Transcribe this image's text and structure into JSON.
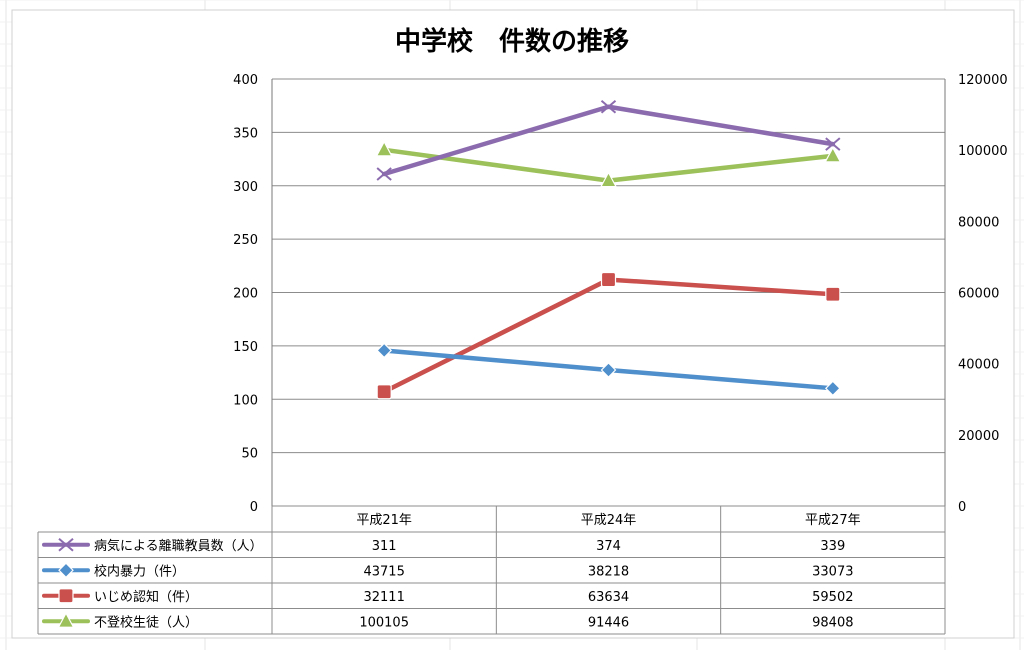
{
  "chart_data": {
    "type": "line",
    "title": "中学校　件数の推移",
    "categories": [
      "平成21年",
      "平成24年",
      "平成27年"
    ],
    "y_left": {
      "min": 0,
      "max": 400,
      "ticks": [
        "0",
        "50",
        "100",
        "150",
        "200",
        "250",
        "300",
        "350",
        "400"
      ]
    },
    "y_right": {
      "min": 0,
      "max": 120000,
      "ticks": [
        "0",
        "20000",
        "40000",
        "60000",
        "80000",
        "100000",
        "120000"
      ]
    },
    "grid": true,
    "legend_placement": "data-table-left",
    "series": [
      {
        "name": "病気による離職教員数（人）",
        "axis": "left",
        "color": "#8B6BAE",
        "marker": "x",
        "values": [
          311,
          374,
          339
        ],
        "labels": [
          "311",
          "374",
          "339"
        ]
      },
      {
        "name": "校内暴力（件）",
        "axis": "right",
        "color": "#4F8FCB",
        "marker": "diamond",
        "values": [
          43715,
          38218,
          33073
        ],
        "labels": [
          "43715",
          "38218",
          "33073"
        ]
      },
      {
        "name": "いじめ認知（件）",
        "axis": "right",
        "color": "#C9504D",
        "marker": "square",
        "values": [
          32111,
          63634,
          59502
        ],
        "labels": [
          "32111",
          "63634",
          "59502"
        ]
      },
      {
        "name": "不登校生徒（人）",
        "axis": "right",
        "color": "#9CC05A",
        "marker": "triangle",
        "values": [
          100105,
          91446,
          98408
        ],
        "labels": [
          "100105",
          "91446",
          "98408"
        ]
      }
    ]
  }
}
